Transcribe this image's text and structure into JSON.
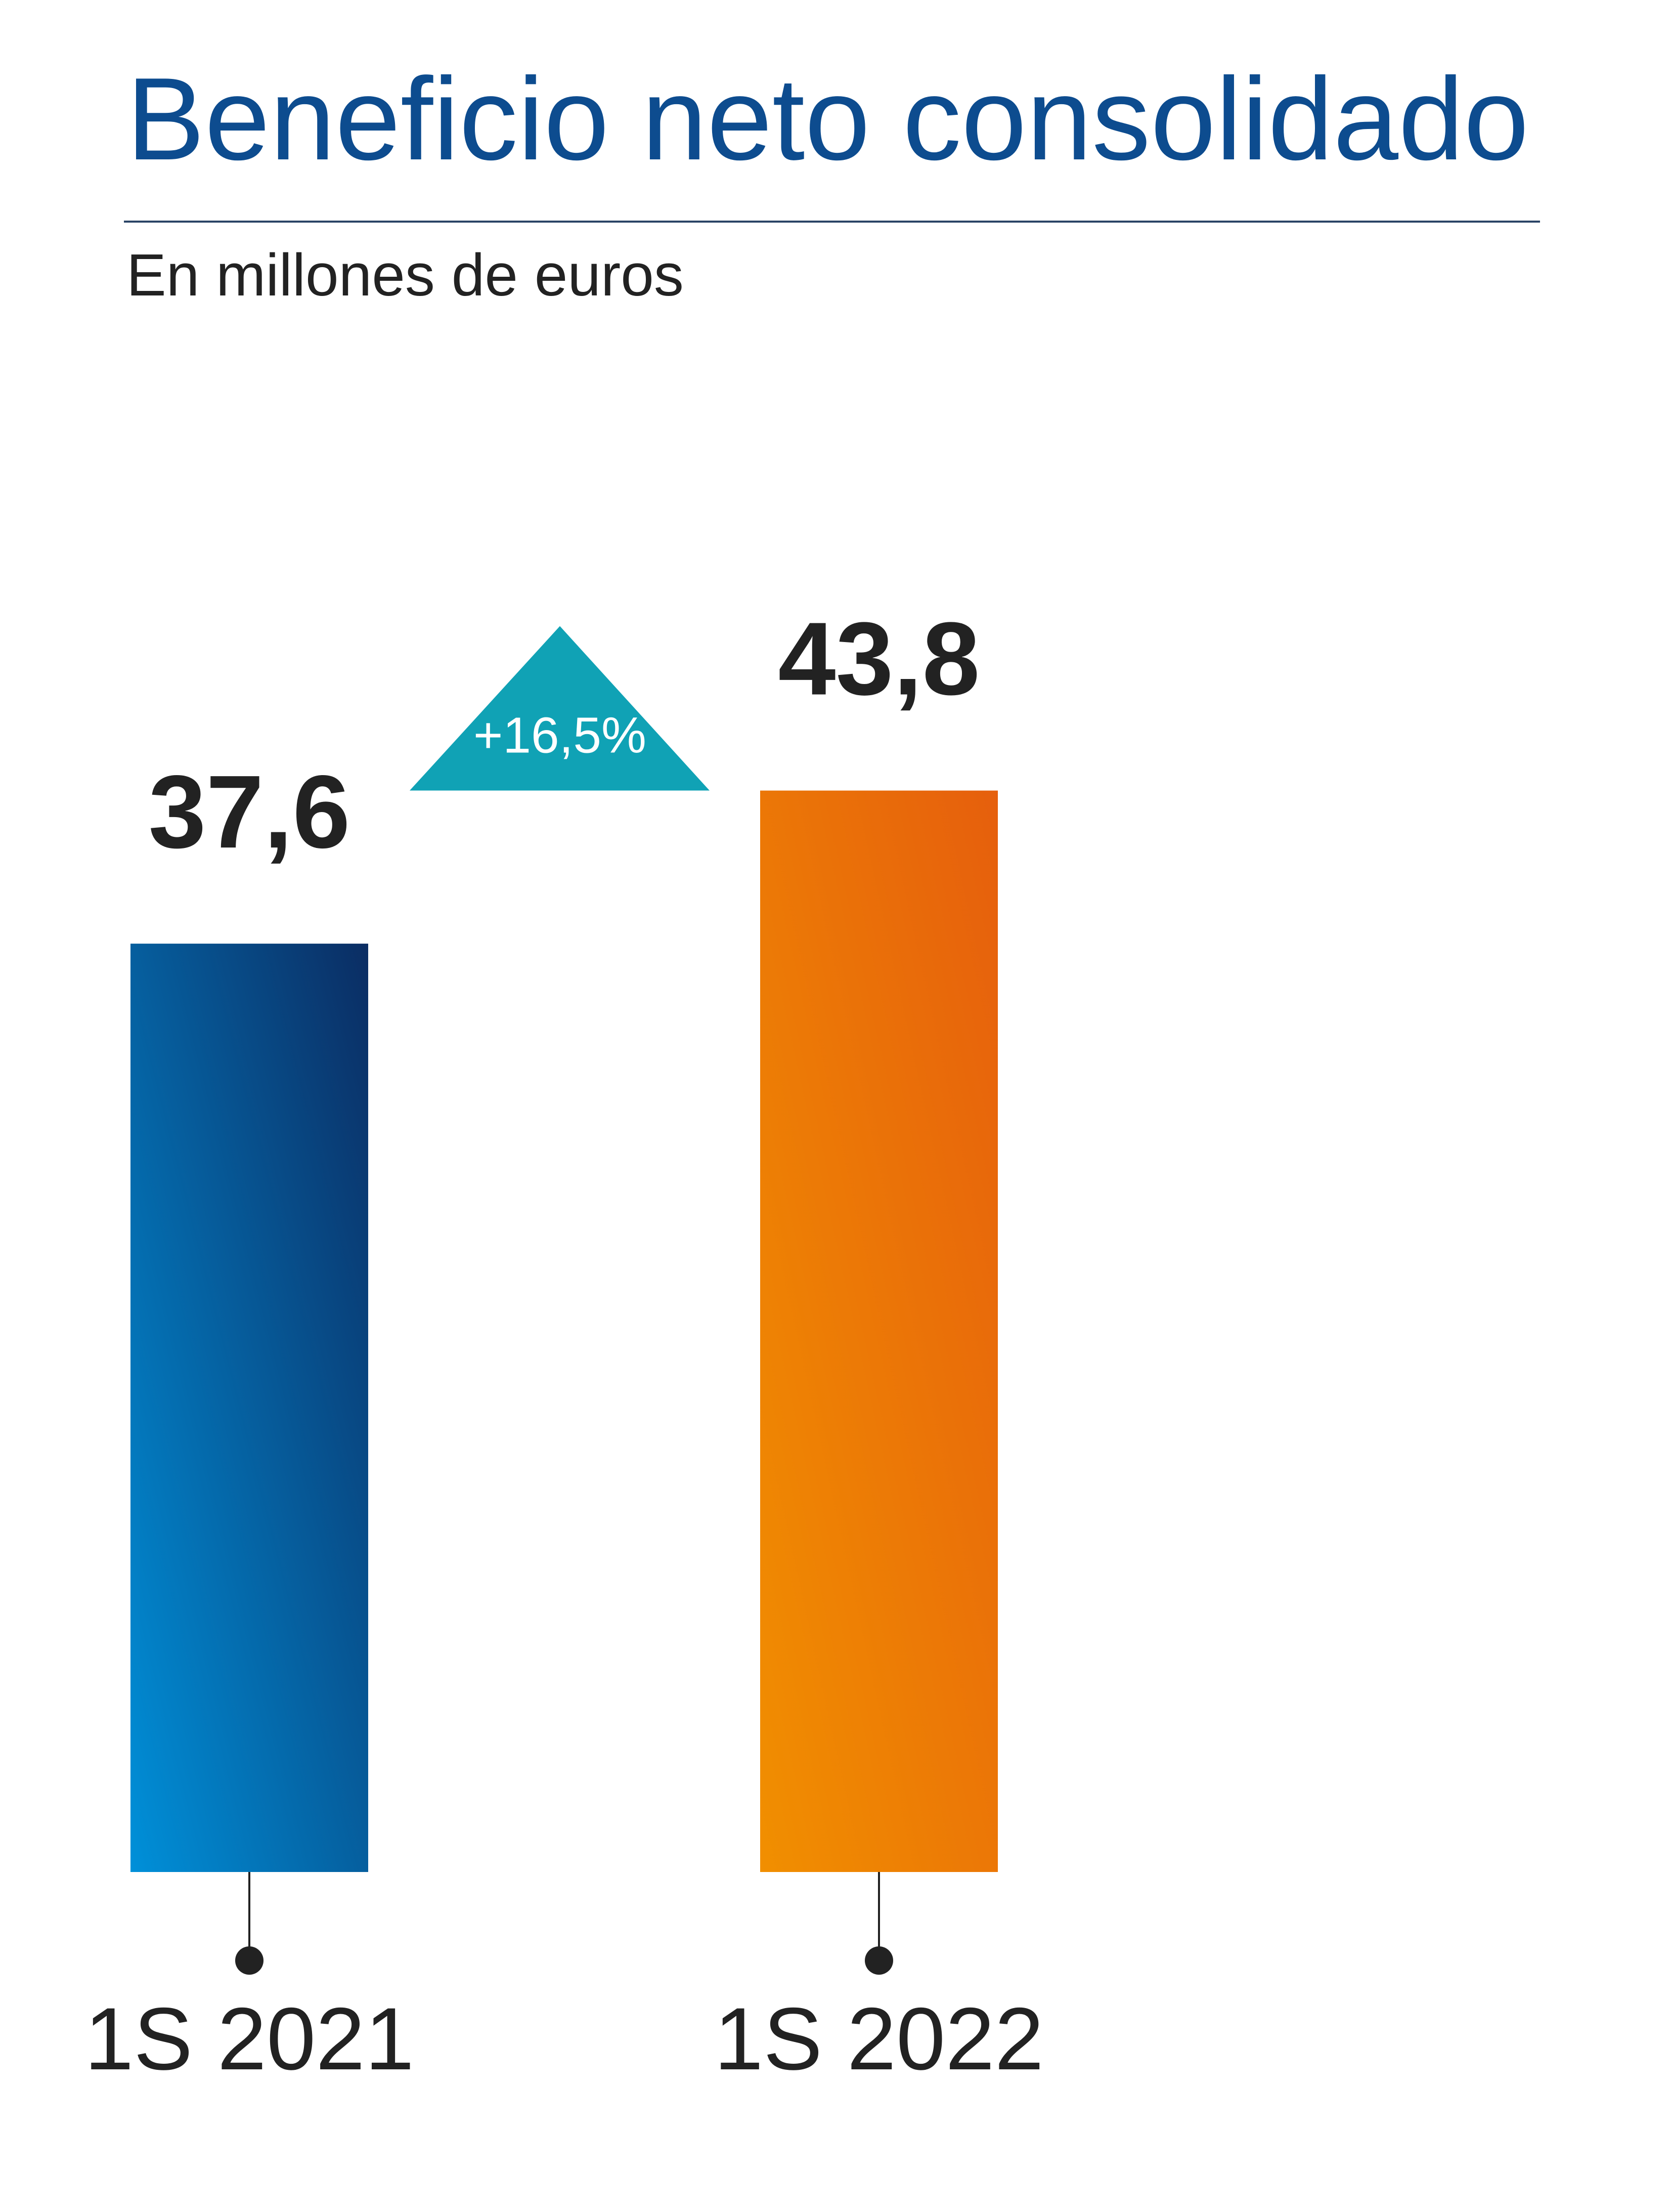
{
  "title": "Beneficio neto consolidado",
  "subtitle": "En millones de euros",
  "chart_data": {
    "type": "bar",
    "categories": [
      "1S 2021",
      "1S 2022"
    ],
    "values": [
      37.6,
      43.8
    ],
    "value_labels": [
      "37,6",
      "43,8"
    ],
    "change_label": "+16,5%",
    "colors": {
      "bar_2021_top": "#0b2d63",
      "bar_2021_bottom": "#0090d9",
      "bar_2022_top": "#e65f0d",
      "bar_2022_bottom": "#f18f00",
      "change_badge": "#10a2b5",
      "title": "#0d4c8f",
      "text": "#222222"
    }
  }
}
